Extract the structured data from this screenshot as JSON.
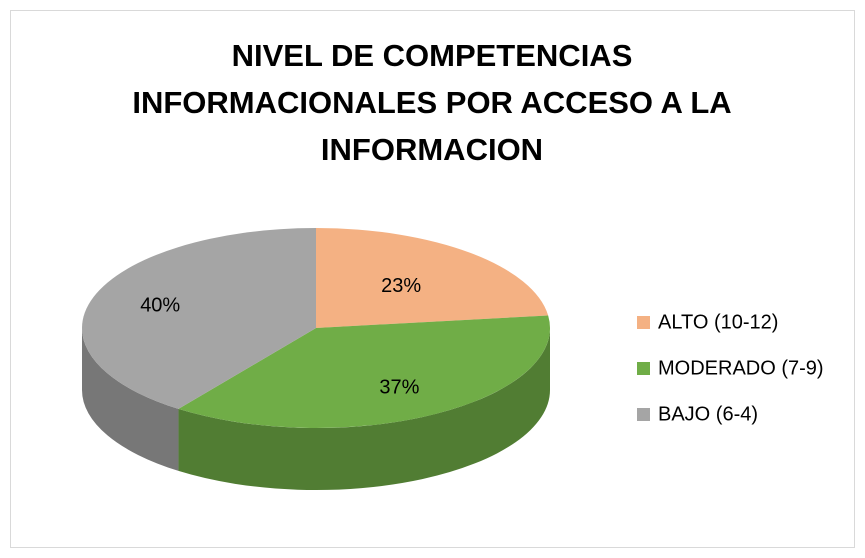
{
  "chart_data": {
    "type": "pie3d",
    "title": "NIVEL DE COMPETENCIAS INFORMACIONALES POR ACCESO A LA INFORMACION",
    "categories": [
      "ALTO (10-12)",
      "MODERADO (7-9)",
      "BAJO (6-4)"
    ],
    "values": [
      23,
      37,
      40
    ],
    "value_labels": [
      "23%",
      "37%",
      "40%"
    ],
    "colors": [
      "#f4b183",
      "#70ad47",
      "#a5a5a5"
    ],
    "legend": "right"
  }
}
